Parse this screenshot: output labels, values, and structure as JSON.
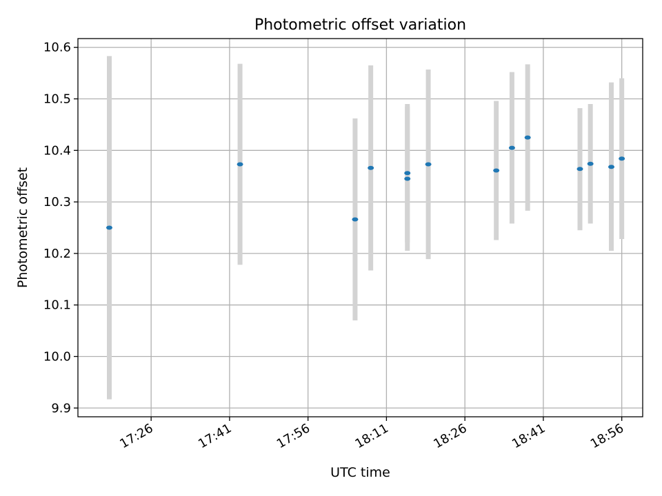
{
  "chart_data": {
    "type": "scatter",
    "title": "Photometric offset variation",
    "xlabel": "UTC time",
    "ylabel": "Photometric offset",
    "xlim": [
      "17:12",
      "19:00"
    ],
    "ylim": [
      9.883,
      10.617
    ],
    "grid": true,
    "colors": {
      "point": "#1f77b4",
      "errorbar": "#d3d3d3",
      "grid": "#b0b0b0"
    },
    "x_ticks": [
      "17:26",
      "17:41",
      "17:56",
      "18:11",
      "18:26",
      "18:41",
      "18:56"
    ],
    "y_ticks": [
      "9.9",
      "10.0",
      "10.1",
      "10.2",
      "10.3",
      "10.4",
      "10.5",
      "10.6"
    ],
    "series": [
      {
        "points": [
          {
            "x": "17:18",
            "y": 10.25,
            "low": 9.917,
            "high": 10.583
          },
          {
            "x": "17:43",
            "y": 10.373,
            "low": 10.178,
            "high": 10.568
          },
          {
            "x": "18:05",
            "y": 10.266,
            "low": 10.07,
            "high": 10.462
          },
          {
            "x": "18:08",
            "y": 10.366,
            "low": 10.167,
            "high": 10.565
          },
          {
            "x": "18:15",
            "y": 10.356,
            "low": 10.221,
            "high": 10.49
          },
          {
            "x": "18:15",
            "y": 10.345,
            "low": 10.205,
            "high": 10.485
          },
          {
            "x": "18:19",
            "y": 10.373,
            "low": 10.189,
            "high": 10.557
          },
          {
            "x": "18:32",
            "y": 10.361,
            "low": 10.226,
            "high": 10.496
          },
          {
            "x": "18:35",
            "y": 10.405,
            "low": 10.258,
            "high": 10.552
          },
          {
            "x": "18:38",
            "y": 10.425,
            "low": 10.283,
            "high": 10.567
          },
          {
            "x": "18:48",
            "y": 10.364,
            "low": 10.245,
            "high": 10.482
          },
          {
            "x": "18:50",
            "y": 10.374,
            "low": 10.258,
            "high": 10.49
          },
          {
            "x": "18:54",
            "y": 10.368,
            "low": 10.205,
            "high": 10.532
          },
          {
            "x": "18:56",
            "y": 10.384,
            "low": 10.228,
            "high": 10.54
          }
        ]
      }
    ]
  }
}
